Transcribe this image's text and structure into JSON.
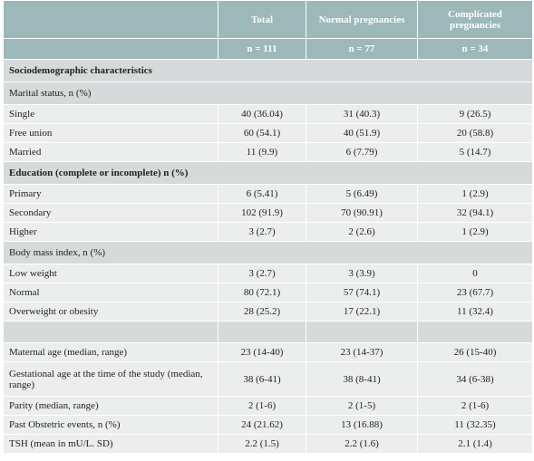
{
  "header": {
    "columns": [
      "Total",
      "Normal pregnancies",
      "Complicated pregnancies"
    ],
    "counts": [
      "n = 111",
      "n = 77",
      "n = 34"
    ]
  },
  "table": {
    "rows": [
      [
        "Sociodemographic characteristics"
      ],
      [
        "Marital status, n  (%)"
      ],
      [
        "Single",
        "40 (36.04)",
        "31 (40.3)",
        "9 (26.5)"
      ],
      [
        "Free union",
        "60 (54.1)",
        "40 (51.9)",
        "20 (58.8)"
      ],
      [
        "Married",
        "11 (9.9)",
        "6 (7.79)",
        "5 (14.7)"
      ],
      [
        "Education (complete or incomplete) n  (%)"
      ],
      [
        "Primary",
        "6 (5.41)",
        "5 (6.49)",
        "1 (2.9)"
      ],
      [
        "Secondary",
        "102 (91.9)",
        "70 (90.91)",
        "32 (94.1)"
      ],
      [
        "Higher",
        "3 (2.7)",
        "2 (2.6)",
        "1 (2.9)"
      ],
      [
        "Body mass index, n  (%)"
      ],
      [
        "Low weight",
        "3 (2.7)",
        "3 (3.9)",
        "0"
      ],
      [
        "Normal",
        "80 (72.1)",
        "57 (74.1)",
        "23 (67.7)"
      ],
      [
        "Overweight or obesity",
        "28 (25.2)",
        "17 (22.1)",
        "11 (32.4)"
      ],
      [
        "Maternal age (median, range)",
        "23 (14-40)",
        "23 (14-37)",
        "26 (15-40)"
      ],
      [
        "Gestational age at the time of the study (median, range)",
        "38 (6-41)",
        "38 (8-41)",
        "34 (6-38)"
      ],
      [
        "Parity (median, range)",
        "2 (1-6)",
        "2 (1-5)",
        "2 (1-6)"
      ],
      [
        "Past Obstetric events, n (%)",
        "24 (21.62)",
        "13 (16.88)",
        "11 (32.35)"
      ],
      [
        "TSH (mean in mU/L. SD)",
        "2.2 (1.5)",
        "2.2 (1.6)",
        "2.1 (1.4)"
      ]
    ]
  }
}
